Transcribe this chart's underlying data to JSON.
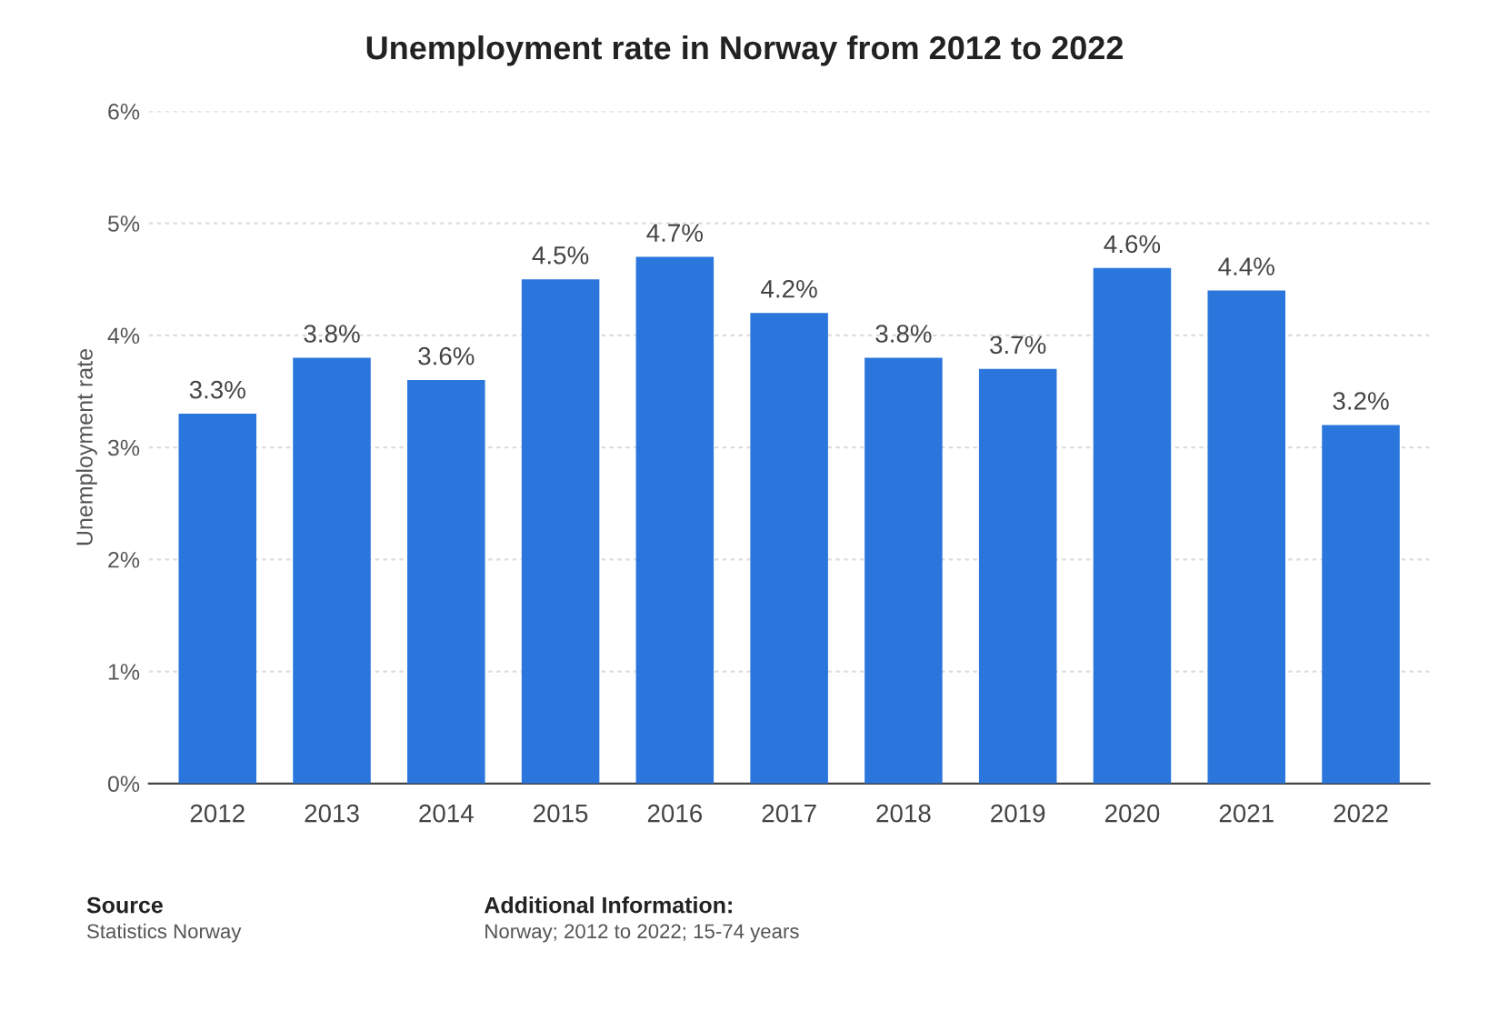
{
  "chart_data": {
    "type": "bar",
    "title": "Unemployment rate in Norway from 2012 to 2022",
    "ylabel": "Unemployment rate",
    "categories": [
      "2012",
      "2013",
      "2014",
      "2015",
      "2016",
      "2017",
      "2018",
      "2019",
      "2020",
      "2021",
      "2022"
    ],
    "values": [
      3.3,
      3.8,
      3.6,
      4.5,
      4.7,
      4.2,
      3.8,
      3.7,
      4.6,
      4.4,
      3.2
    ],
    "value_labels": [
      "3.3%",
      "3.8%",
      "3.6%",
      "4.5%",
      "4.7%",
      "4.2%",
      "3.8%",
      "3.7%",
      "4.6%",
      "4.4%",
      "3.2%"
    ],
    "color": "#2a76dd",
    "ylim": [
      0,
      6
    ],
    "yticks": [
      {
        "value": 0,
        "label": "0%"
      },
      {
        "value": 1,
        "label": "1%"
      },
      {
        "value": 2,
        "label": "2%"
      },
      {
        "value": 3,
        "label": "3%"
      },
      {
        "value": 4,
        "label": "4%"
      },
      {
        "value": 5,
        "label": "5%"
      },
      {
        "value": 6,
        "label": "6%"
      }
    ],
    "grid": "y",
    "annotations": [
      "Source",
      "Statistics Norway",
      "Additional Information:",
      "Norway; 2012 to 2022; 15-74 years"
    ]
  }
}
